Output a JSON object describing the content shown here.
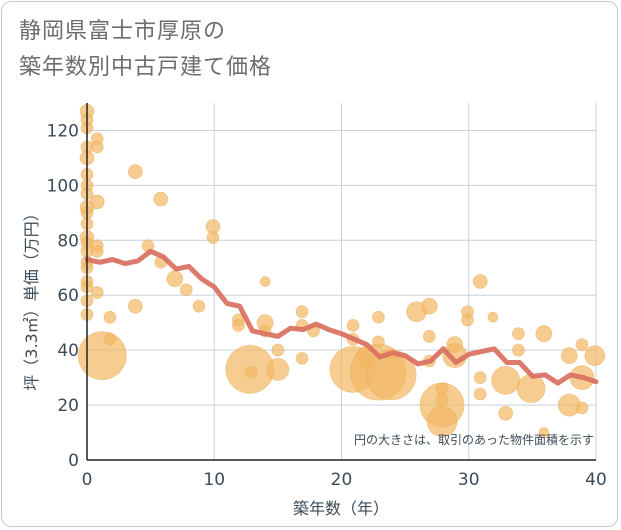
{
  "title_line1": "静岡県富士市厚原の",
  "title_line2": "築年数別中古戸建て価格",
  "chart_data": {
    "type": "scatter",
    "xlabel": "築年数（年）",
    "ylabel": "坪（3.3㎡）単価（万円）",
    "xlim": [
      0,
      40
    ],
    "ylim": [
      0,
      130
    ],
    "xticks": [
      0,
      10,
      20,
      30,
      40
    ],
    "yticks": [
      0,
      20,
      40,
      60,
      80,
      100,
      120
    ],
    "grid": true,
    "annotation": "円の大きさは、取引のあった物件面積を示す",
    "colors": {
      "bubble": "#f2b866",
      "line": "#d9705f",
      "grid": "#c8d2dc",
      "axis_text": "#3d4b57"
    },
    "points": [
      {
        "x": 0,
        "y": 127,
        "s": 7
      },
      {
        "x": 0,
        "y": 124,
        "s": 6
      },
      {
        "x": 0,
        "y": 121,
        "s": 6
      },
      {
        "x": 0,
        "y": 114,
        "s": 6
      },
      {
        "x": 0,
        "y": 110,
        "s": 7
      },
      {
        "x": 0,
        "y": 104,
        "s": 6
      },
      {
        "x": 0,
        "y": 100,
        "s": 6
      },
      {
        "x": 0,
        "y": 97,
        "s": 6
      },
      {
        "x": 0,
        "y": 92,
        "s": 7
      },
      {
        "x": 0,
        "y": 90,
        "s": 6
      },
      {
        "x": 0,
        "y": 86,
        "s": 6
      },
      {
        "x": 0,
        "y": 81,
        "s": 7
      },
      {
        "x": 0,
        "y": 79,
        "s": 6
      },
      {
        "x": 0,
        "y": 76,
        "s": 6
      },
      {
        "x": 0,
        "y": 72,
        "s": 6
      },
      {
        "x": 0,
        "y": 70,
        "s": 6
      },
      {
        "x": 0,
        "y": 65,
        "s": 6
      },
      {
        "x": 0,
        "y": 63,
        "s": 6
      },
      {
        "x": 0,
        "y": 58,
        "s": 6
      },
      {
        "x": 0,
        "y": 53,
        "s": 6
      },
      {
        "x": 0.8,
        "y": 117,
        "s": 6
      },
      {
        "x": 0.8,
        "y": 114,
        "s": 6
      },
      {
        "x": 0.8,
        "y": 94,
        "s": 7
      },
      {
        "x": 0.8,
        "y": 78,
        "s": 6
      },
      {
        "x": 0.8,
        "y": 76,
        "s": 6
      },
      {
        "x": 0.8,
        "y": 61,
        "s": 6
      },
      {
        "x": 1.2,
        "y": 38,
        "s": 24
      },
      {
        "x": 1.8,
        "y": 52,
        "s": 6
      },
      {
        "x": 1.8,
        "y": 44,
        "s": 6
      },
      {
        "x": 3.8,
        "y": 105,
        "s": 7
      },
      {
        "x": 3.8,
        "y": 56,
        "s": 7
      },
      {
        "x": 4.8,
        "y": 78,
        "s": 6
      },
      {
        "x": 5.8,
        "y": 95,
        "s": 7
      },
      {
        "x": 5.8,
        "y": 72,
        "s": 6
      },
      {
        "x": 6.9,
        "y": 66,
        "s": 8
      },
      {
        "x": 7.8,
        "y": 62,
        "s": 6
      },
      {
        "x": 8.8,
        "y": 56,
        "s": 6
      },
      {
        "x": 9.9,
        "y": 85,
        "s": 7
      },
      {
        "x": 9.9,
        "y": 81,
        "s": 6
      },
      {
        "x": 11.9,
        "y": 51,
        "s": 6
      },
      {
        "x": 11.9,
        "y": 49,
        "s": 6
      },
      {
        "x": 12.8,
        "y": 33,
        "s": 24
      },
      {
        "x": 12.9,
        "y": 32,
        "s": 6
      },
      {
        "x": 14,
        "y": 65,
        "s": 5
      },
      {
        "x": 14,
        "y": 50,
        "s": 8
      },
      {
        "x": 14,
        "y": 47,
        "s": 6
      },
      {
        "x": 15,
        "y": 40,
        "s": 6
      },
      {
        "x": 15,
        "y": 33,
        "s": 11
      },
      {
        "x": 16.9,
        "y": 54,
        "s": 6
      },
      {
        "x": 16.9,
        "y": 49,
        "s": 6
      },
      {
        "x": 16.9,
        "y": 37,
        "s": 6
      },
      {
        "x": 17.8,
        "y": 47,
        "s": 6
      },
      {
        "x": 20.9,
        "y": 49,
        "s": 6
      },
      {
        "x": 20.9,
        "y": 44,
        "s": 6
      },
      {
        "x": 20.9,
        "y": 33,
        "s": 23
      },
      {
        "x": 21.9,
        "y": 38,
        "s": 9
      },
      {
        "x": 21.9,
        "y": 36,
        "s": 7
      },
      {
        "x": 22.9,
        "y": 52,
        "s": 6
      },
      {
        "x": 22.9,
        "y": 43,
        "s": 6
      },
      {
        "x": 22.9,
        "y": 32,
        "s": 28
      },
      {
        "x": 23.9,
        "y": 31,
        "s": 25
      },
      {
        "x": 23.9,
        "y": 38,
        "s": 6
      },
      {
        "x": 25.9,
        "y": 54,
        "s": 10
      },
      {
        "x": 26.9,
        "y": 56,
        "s": 8
      },
      {
        "x": 26.9,
        "y": 45,
        "s": 6
      },
      {
        "x": 26.9,
        "y": 36,
        "s": 6
      },
      {
        "x": 27.9,
        "y": 20,
        "s": 22
      },
      {
        "x": 27.9,
        "y": 14,
        "s": 15
      },
      {
        "x": 27.9,
        "y": 26,
        "s": 6
      },
      {
        "x": 27.9,
        "y": 22,
        "s": 6
      },
      {
        "x": 28.9,
        "y": 42,
        "s": 8
      },
      {
        "x": 28.9,
        "y": 38,
        "s": 12
      },
      {
        "x": 29.9,
        "y": 54,
        "s": 6
      },
      {
        "x": 29.9,
        "y": 51,
        "s": 6
      },
      {
        "x": 30.9,
        "y": 65,
        "s": 7
      },
      {
        "x": 30.9,
        "y": 30,
        "s": 6
      },
      {
        "x": 30.9,
        "y": 24,
        "s": 6
      },
      {
        "x": 31.9,
        "y": 52,
        "s": 5
      },
      {
        "x": 32.9,
        "y": 29,
        "s": 14
      },
      {
        "x": 32.9,
        "y": 17,
        "s": 7
      },
      {
        "x": 33.9,
        "y": 46,
        "s": 6
      },
      {
        "x": 33.9,
        "y": 40,
        "s": 6
      },
      {
        "x": 34.9,
        "y": 26,
        "s": 14
      },
      {
        "x": 35.9,
        "y": 46,
        "s": 8
      },
      {
        "x": 35.9,
        "y": 10,
        "s": 5
      },
      {
        "x": 37.9,
        "y": 38,
        "s": 8
      },
      {
        "x": 37.9,
        "y": 20,
        "s": 11
      },
      {
        "x": 38.9,
        "y": 42,
        "s": 6
      },
      {
        "x": 38.9,
        "y": 19,
        "s": 6
      },
      {
        "x": 39.9,
        "y": 38,
        "s": 10
      },
      {
        "x": 38.9,
        "y": 30,
        "s": 12
      }
    ],
    "trend": {
      "x": [
        0,
        1,
        2,
        3,
        4,
        5,
        6,
        7,
        8,
        9,
        10,
        11,
        12,
        13,
        14,
        15,
        16,
        17,
        18,
        19,
        20,
        21,
        22,
        23,
        24,
        25,
        26,
        27,
        28,
        29,
        30,
        31,
        32,
        33,
        34,
        35,
        36,
        37,
        38,
        39,
        40
      ],
      "y": [
        73,
        72,
        73,
        71.5,
        72.5,
        76,
        74,
        69.5,
        70.5,
        66,
        63,
        57,
        56,
        47,
        46,
        45,
        48,
        47.5,
        49.5,
        47.5,
        46,
        44,
        42,
        37.5,
        39,
        38,
        35,
        36,
        40.5,
        35.5,
        38.5,
        39.5,
        40.5,
        35.5,
        35.5,
        30.5,
        31,
        28,
        31,
        30,
        28.5
      ]
    }
  }
}
